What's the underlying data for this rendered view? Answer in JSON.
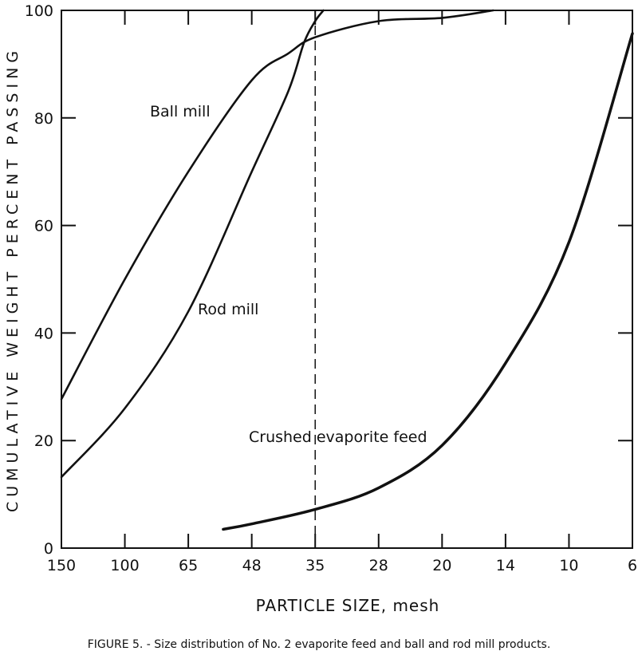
{
  "chart_data": {
    "type": "line",
    "title": "",
    "xlabel": "PARTICLE SIZE, mesh",
    "ylabel": "CUMULATIVE WEIGHT PERCENT PASSING",
    "x_ticks": [
      "150",
      "100",
      "65",
      "48",
      "35",
      "28",
      "20",
      "14",
      "10",
      "6"
    ],
    "y_ticks": [
      "0",
      "20",
      "40",
      "60",
      "80",
      "100"
    ],
    "ylim": [
      0,
      100
    ],
    "grid": false,
    "legend": "none (curves labeled directly)",
    "reference_line": {
      "x": 35,
      "style": "dashed"
    },
    "series": [
      {
        "name": "Ball mill",
        "points": [
          [
            150,
            27.7
          ],
          [
            100,
            50
          ],
          [
            65,
            70
          ],
          [
            48,
            87
          ],
          [
            40,
            92
          ],
          [
            35,
            95
          ],
          [
            28,
            98
          ],
          [
            20,
            98.6
          ],
          [
            15,
            100
          ]
        ]
      },
      {
        "name": "Rod mill",
        "points": [
          [
            150,
            13.2
          ],
          [
            100,
            26
          ],
          [
            65,
            44
          ],
          [
            48,
            70
          ],
          [
            40,
            85
          ],
          [
            37,
            94
          ],
          [
            35,
            98
          ],
          [
            34,
            100
          ]
        ]
      },
      {
        "name": "Crushed evaporite feed",
        "points": [
          [
            55,
            3.5
          ],
          [
            48,
            4.5
          ],
          [
            35,
            7.2
          ],
          [
            28,
            11.2
          ],
          [
            20,
            19.1
          ],
          [
            14,
            34.4
          ],
          [
            10,
            56.9
          ],
          [
            6,
            95.7
          ]
        ]
      }
    ],
    "caption": "FIGURE 5. - Size distribution of No. 2 evaporite feed and ball and rod mill products."
  },
  "colors": {
    "line": "#111111",
    "background": "#ffffff"
  }
}
